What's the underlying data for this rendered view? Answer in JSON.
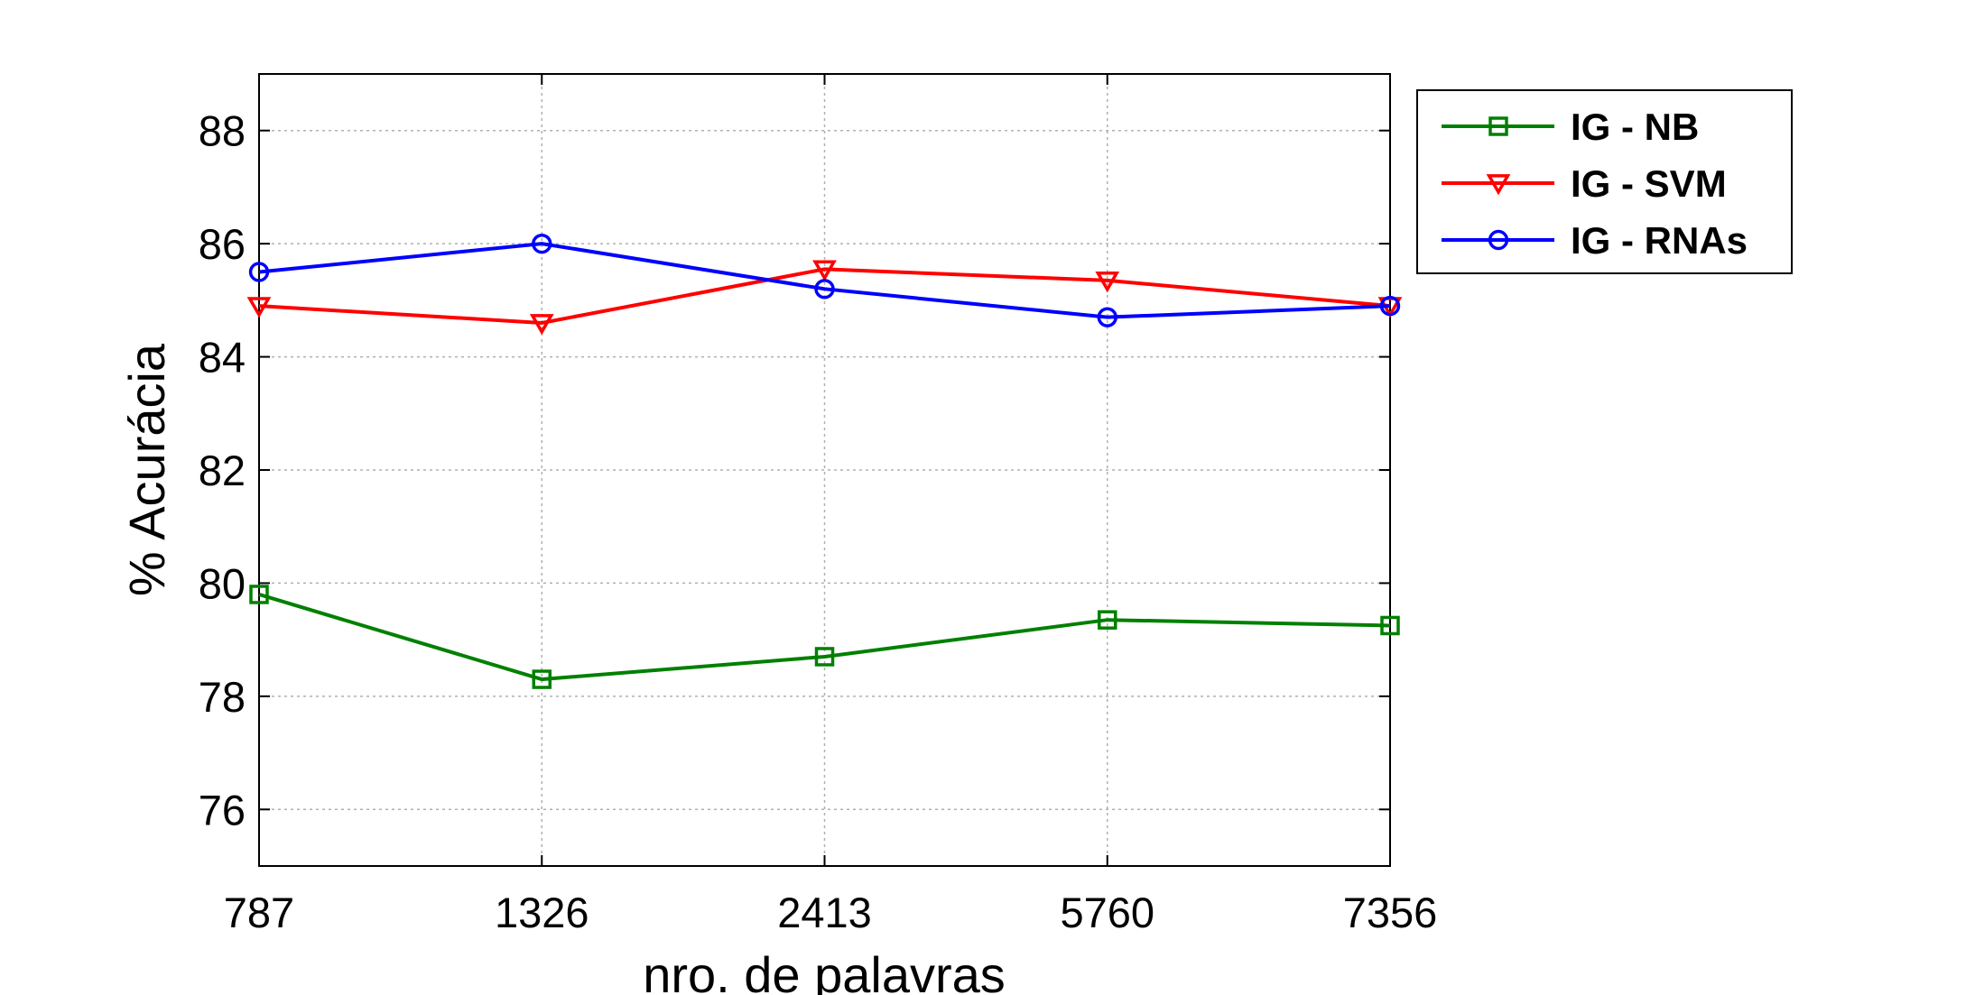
{
  "chart_data": {
    "type": "line",
    "title": "",
    "xlabel": "nro. de palavras",
    "ylabel": "% Acurácia",
    "categories": [
      "787",
      "1326",
      "2413",
      "5760",
      "7356"
    ],
    "ylim": [
      75,
      89
    ],
    "yticks": [
      76,
      78,
      80,
      82,
      84,
      86,
      88
    ],
    "grid": true,
    "legend_position": "outside-top-right",
    "series": [
      {
        "name": "IG - NB",
        "color": "#008000",
        "marker": "square",
        "values": [
          79.8,
          78.3,
          78.7,
          79.35,
          79.25
        ]
      },
      {
        "name": "IG - SVM",
        "color": "#ff0000",
        "marker": "triangle-down",
        "values": [
          84.9,
          84.6,
          85.55,
          85.35,
          84.9
        ]
      },
      {
        "name": "IG - RNAs",
        "color": "#0000ff",
        "marker": "circle",
        "values": [
          85.5,
          86.0,
          85.2,
          84.7,
          84.9
        ]
      }
    ]
  }
}
